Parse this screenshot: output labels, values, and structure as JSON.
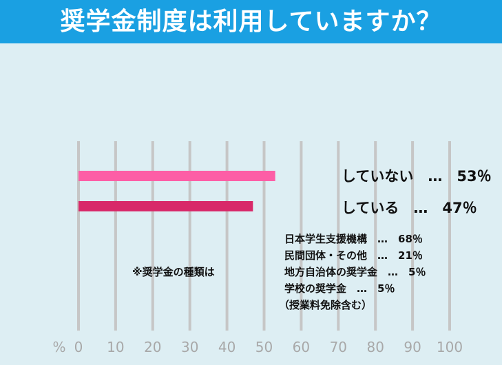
{
  "header": {
    "title": "奨学金制度は利用していますか？"
  },
  "chart_data": {
    "type": "bar",
    "orientation": "horizontal",
    "categories": [
      "していない",
      "している"
    ],
    "values": [
      53,
      47
    ],
    "colors": [
      "#fd5ea6",
      "#d82969"
    ],
    "xlim": [
      0,
      100
    ],
    "x_ticks": [
      0,
      10,
      20,
      30,
      40,
      50,
      60,
      70,
      80,
      90,
      100
    ],
    "x_unit": "%",
    "grid": "vertical",
    "gridline_color": "#c6c6c6",
    "tick_label_color": "#a8a8a8",
    "bar_labels": [
      "していない　…　53％",
      "している　…　47％"
    ]
  },
  "annotation": {
    "note": "※奨学金の種類は",
    "breakdown": [
      "日本学生支援機構　…　68％",
      "民間団体・その他　…　21％",
      "地方自治体の奨学金　…　5％",
      "学校の奨学金　…　5％",
      "（授業料免除含む）"
    ]
  }
}
